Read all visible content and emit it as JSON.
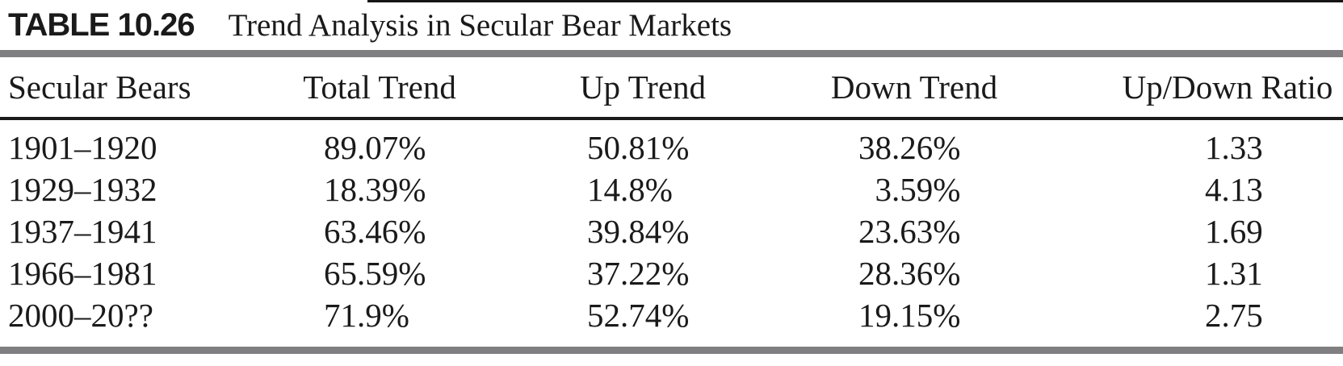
{
  "caption": {
    "label": "TABLE 10.26",
    "title": "Trend Analysis in Secular Bear Markets"
  },
  "table": {
    "columns": [
      "Secular Bears",
      "Total Trend",
      "Up Trend",
      "Down Trend",
      "Up/Down Ratio"
    ],
    "rows": [
      {
        "period": "1901–1920",
        "total": "89.07%",
        "up": "50.81%",
        "down": "38.26%",
        "ratio": "1.33"
      },
      {
        "period": "1929–1932",
        "total": "18.39%",
        "up": "14.8%",
        "down": "3.59%",
        "ratio": "4.13"
      },
      {
        "period": "1937–1941",
        "total": "63.46%",
        "up": "39.84%",
        "down": "23.63%",
        "ratio": "1.69"
      },
      {
        "period": "1966–1981",
        "total": "65.59%",
        "up": "37.22%",
        "down": "28.36%",
        "ratio": "1.31"
      },
      {
        "period": "2000–20??",
        "total": "71.9%",
        "up": "52.74%",
        "down": "19.15%",
        "ratio": "2.75"
      }
    ]
  },
  "colors": {
    "rule_gray": "#7f7f82",
    "rule_black": "#1b1b1b",
    "text": "#1a1a1a"
  }
}
